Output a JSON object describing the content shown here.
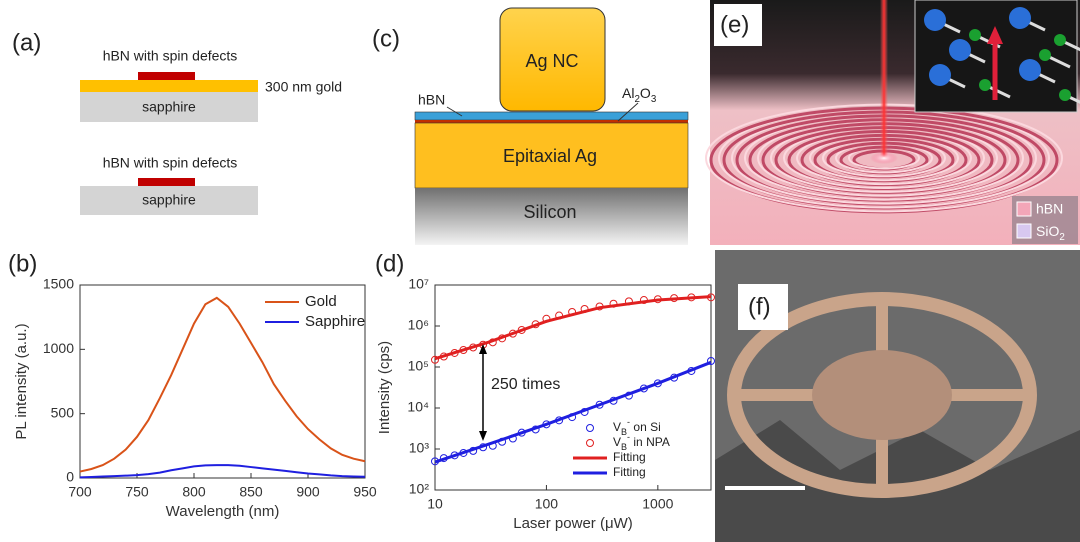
{
  "panel_a": {
    "label": "(a)",
    "top_layer": "hBN with spin defects",
    "gold": "300 nm gold",
    "substrate": "sapphire",
    "bottom_layer": "hBN with spin defects",
    "bottom_substrate": "sapphire"
  },
  "panel_c": {
    "label": "(c)",
    "particle": "Ag NC",
    "hbn": "hBN",
    "spacer": "Al2O3",
    "film": "Epitaxial Ag",
    "substrate": "Silicon"
  },
  "panel_e": {
    "label": "(e)",
    "legend": [
      "hBN",
      "SiO2"
    ]
  },
  "panel_f": {
    "label": "(f)"
  },
  "chart_data": [
    {
      "type": "line",
      "label": "(b)",
      "xlabel": "Wavelength (nm)",
      "ylabel": "PL intensity (a.u.)",
      "x": [
        700,
        710,
        720,
        730,
        740,
        750,
        760,
        770,
        780,
        790,
        800,
        810,
        820,
        830,
        840,
        850,
        860,
        870,
        880,
        890,
        900,
        910,
        920,
        930,
        940,
        950
      ],
      "series": [
        {
          "name": "Gold",
          "color": "#d95319",
          "values": [
            50,
            70,
            100,
            150,
            220,
            320,
            450,
            620,
            800,
            1000,
            1200,
            1350,
            1400,
            1330,
            1200,
            1050,
            900,
            730,
            600,
            480,
            380,
            300,
            230,
            180,
            150,
            130
          ]
        },
        {
          "name": "Sapphire",
          "color": "#1f1fe0",
          "values": [
            5,
            8,
            12,
            15,
            18,
            22,
            30,
            42,
            60,
            75,
            90,
            98,
            100,
            100,
            95,
            85,
            75,
            65,
            55,
            45,
            35,
            28,
            20,
            15,
            12,
            10
          ]
        }
      ],
      "xlim": [
        700,
        950
      ],
      "ylim": [
        0,
        1500
      ],
      "xticks": [
        700,
        750,
        800,
        850,
        900,
        950
      ],
      "yticks": [
        0,
        500,
        1000,
        1500
      ],
      "legend": "upper right"
    },
    {
      "type": "scatter",
      "label": "(d)",
      "xlabel": "Laser power (μW)",
      "ylabel": "Intensity (cps)",
      "annotation": "250 times",
      "log_x": true,
      "log_y": true,
      "series": [
        {
          "name": "VB- on Si",
          "color": "#1f1fe0",
          "mode": "markers",
          "x": [
            10,
            12,
            15,
            18,
            22,
            27,
            33,
            40,
            50,
            60,
            80,
            100,
            130,
            170,
            220,
            300,
            400,
            550,
            750,
            1000,
            1400,
            2000,
            3000
          ],
          "values": [
            500,
            600,
            700,
            800,
            900,
            1100,
            1200,
            1500,
            1800,
            2500,
            3000,
            4000,
            5000,
            6000,
            8000,
            12000,
            15000,
            20000,
            30000,
            40000,
            55000,
            80000,
            140000
          ]
        },
        {
          "name": "VB- in NPA",
          "color": "#e02020",
          "mode": "markers",
          "x": [
            10,
            12,
            15,
            18,
            22,
            27,
            33,
            40,
            50,
            60,
            80,
            100,
            130,
            170,
            220,
            300,
            400,
            550,
            750,
            1000,
            1400,
            2000,
            3000
          ],
          "values": [
            150000,
            180000,
            220000,
            260000,
            300000,
            350000,
            400000,
            500000,
            650000,
            800000,
            1100000,
            1500000,
            1800000,
            2200000,
            2600000,
            3000000,
            3500000,
            4000000,
            4300000,
            4500000,
            4800000,
            5000000,
            5000000
          ]
        },
        {
          "name": "Fitting",
          "color": "#e02020",
          "mode": "line",
          "x": [
            10,
            30,
            100,
            300,
            1000,
            3000
          ],
          "values": [
            160000,
            400000,
            1300000,
            2800000,
            4300000,
            5200000
          ]
        },
        {
          "name": "Fitting",
          "color": "#1f1fe0",
          "mode": "line",
          "x": [
            10,
            30,
            100,
            300,
            1000,
            3000
          ],
          "values": [
            480.0,
            1300,
            4000,
            12000,
            40000,
            130000
          ]
        }
      ],
      "xlim": [
        10,
        3000
      ],
      "ylim": [
        100,
        10000000
      ],
      "xticks": [
        10,
        100,
        1000
      ],
      "yticks": [
        {
          "value": 100,
          "label": "10²"
        },
        {
          "value": 1000,
          "label": "10³"
        },
        {
          "value": 10000,
          "label": "10⁴"
        },
        {
          "value": 100000,
          "label": "10⁵"
        },
        {
          "value": 1000000,
          "label": "10⁶"
        },
        {
          "value": 10000000,
          "label": "10⁷"
        }
      ],
      "legend": "lower right"
    }
  ]
}
